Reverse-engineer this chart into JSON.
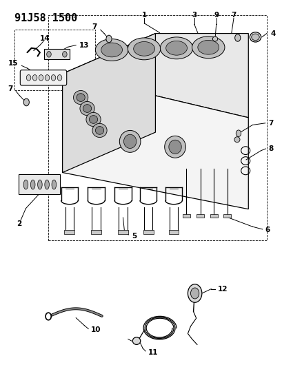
{
  "title": "91J58 1500",
  "bg_color": "#ffffff",
  "line_color": "#000000",
  "title_fontsize": 11,
  "label_fontsize": 7.5,
  "fig_width": 4.1,
  "fig_height": 5.33,
  "dpi": 100
}
